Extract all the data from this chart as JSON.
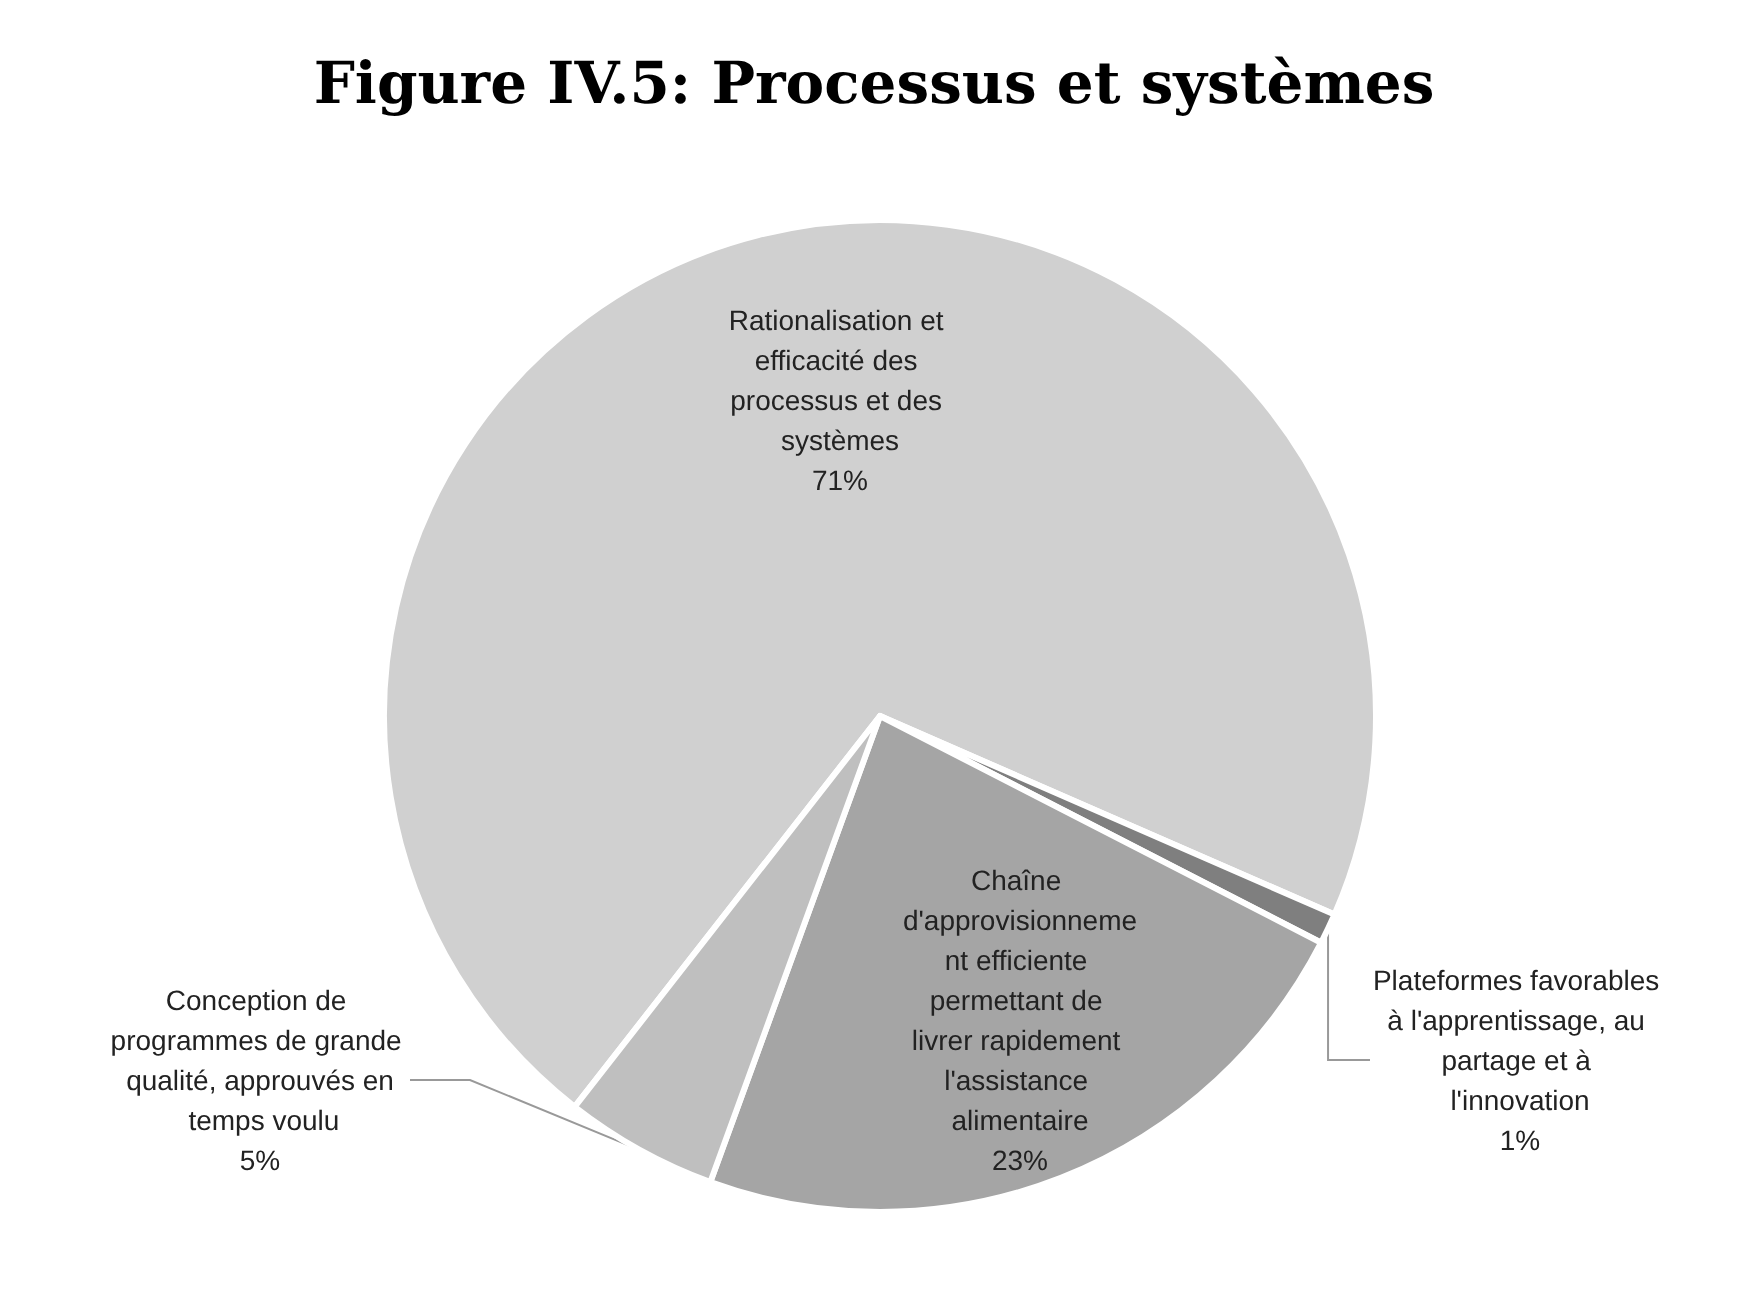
{
  "chart_data": {
    "type": "pie",
    "title": "Figure IV.5: Processus et systèmes",
    "categories": [
      "Rationalisation et efficacité des processus et des systèmes",
      "Plateformes favorables à l'apprentissage, au partage et à l'innovation",
      "Chaîne d'approvisionnement efficiente permettant de livrer rapidement l'assistance alimentaire",
      "Conception de programmes de grande qualité, approuvés en temps voulu"
    ],
    "values": [
      71,
      1,
      23,
      5
    ],
    "colors": [
      "#d0d0d0",
      "#7f7f7f",
      "#a5a5a5",
      "#bfbfbf"
    ],
    "value_labels": [
      "71%",
      "1%",
      "23%",
      "5%"
    ],
    "legend": false
  }
}
